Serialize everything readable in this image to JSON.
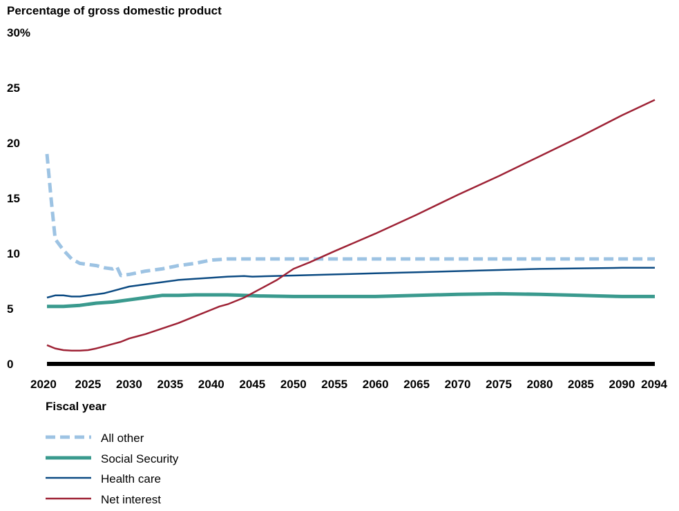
{
  "chart_data": {
    "type": "line",
    "ylabel": "Percentage of gross domestic product",
    "xlabel": "Fiscal year",
    "ylim": [
      0,
      30
    ],
    "xlim": [
      2020,
      2094
    ],
    "y_ticks": [
      "0",
      "5",
      "10",
      "15",
      "20",
      "25",
      "30%"
    ],
    "x_ticks": [
      "2020",
      "2025",
      "2030",
      "2035",
      "2040",
      "2045",
      "2050",
      "2055",
      "2060",
      "2065",
      "2070",
      "2075",
      "2080",
      "2085",
      "2090",
      "2094"
    ],
    "grid": false,
    "legend_position": "bottom-left",
    "series": [
      {
        "name": "All other",
        "color": "#9dc3e3",
        "style": "dashed",
        "width": 5,
        "x": [
          2020,
          2020.5,
          2021,
          2022,
          2023,
          2024,
          2025,
          2026,
          2027,
          2028,
          2028.5,
          2029,
          2030,
          2032,
          2034,
          2036,
          2038,
          2040,
          2042,
          2050,
          2060,
          2070,
          2080,
          2090,
          2094
        ],
        "y": [
          19.0,
          15.0,
          11.3,
          10.3,
          9.5,
          9.1,
          9.0,
          8.9,
          8.7,
          8.6,
          8.8,
          8.0,
          8.1,
          8.4,
          8.6,
          8.9,
          9.1,
          9.4,
          9.5,
          9.5,
          9.5,
          9.5,
          9.5,
          9.5,
          9.5
        ]
      },
      {
        "name": "Social Security",
        "color": "#3a9a8e",
        "style": "solid",
        "width": 5,
        "x": [
          2020,
          2022,
          2024,
          2026,
          2028,
          2030,
          2032,
          2034,
          2036,
          2038,
          2040,
          2042,
          2044,
          2046,
          2050,
          2055,
          2060,
          2065,
          2070,
          2075,
          2080,
          2085,
          2090,
          2094
        ],
        "y": [
          5.2,
          5.2,
          5.3,
          5.5,
          5.6,
          5.8,
          6.0,
          6.2,
          6.2,
          6.25,
          6.25,
          6.25,
          6.2,
          6.15,
          6.1,
          6.1,
          6.1,
          6.2,
          6.3,
          6.35,
          6.3,
          6.2,
          6.1,
          6.1
        ]
      },
      {
        "name": "Health care",
        "color": "#0b4a82",
        "style": "solid",
        "width": 2.5,
        "x": [
          2020,
          2021,
          2022,
          2023,
          2024,
          2025,
          2026,
          2027,
          2028,
          2029,
          2030,
          2032,
          2034,
          2036,
          2038,
          2040,
          2042,
          2044,
          2045,
          2050,
          2055,
          2060,
          2065,
          2070,
          2075,
          2080,
          2085,
          2090,
          2094
        ],
        "y": [
          6.0,
          6.2,
          6.2,
          6.1,
          6.1,
          6.2,
          6.3,
          6.4,
          6.6,
          6.8,
          7.0,
          7.2,
          7.4,
          7.6,
          7.7,
          7.8,
          7.9,
          7.95,
          7.9,
          8.0,
          8.1,
          8.2,
          8.3,
          8.4,
          8.5,
          8.6,
          8.65,
          8.7,
          8.7
        ]
      },
      {
        "name": "Net interest",
        "color": "#9e2235",
        "style": "solid",
        "width": 2.5,
        "x": [
          2020,
          2021,
          2022,
          2023,
          2024,
          2025,
          2026,
          2027,
          2028,
          2029,
          2030,
          2031,
          2032,
          2034,
          2036,
          2038,
          2040,
          2041,
          2042,
          2044,
          2046,
          2047,
          2048,
          2050,
          2052,
          2055,
          2060,
          2065,
          2070,
          2075,
          2080,
          2085,
          2090,
          2094
        ],
        "y": [
          1.7,
          1.4,
          1.25,
          1.2,
          1.2,
          1.25,
          1.4,
          1.6,
          1.8,
          2.0,
          2.3,
          2.5,
          2.7,
          3.2,
          3.7,
          4.3,
          4.9,
          5.2,
          5.4,
          6.0,
          6.8,
          7.2,
          7.6,
          8.6,
          9.2,
          10.2,
          11.8,
          13.5,
          15.3,
          17.0,
          18.8,
          20.6,
          22.5,
          23.9
        ]
      }
    ]
  }
}
